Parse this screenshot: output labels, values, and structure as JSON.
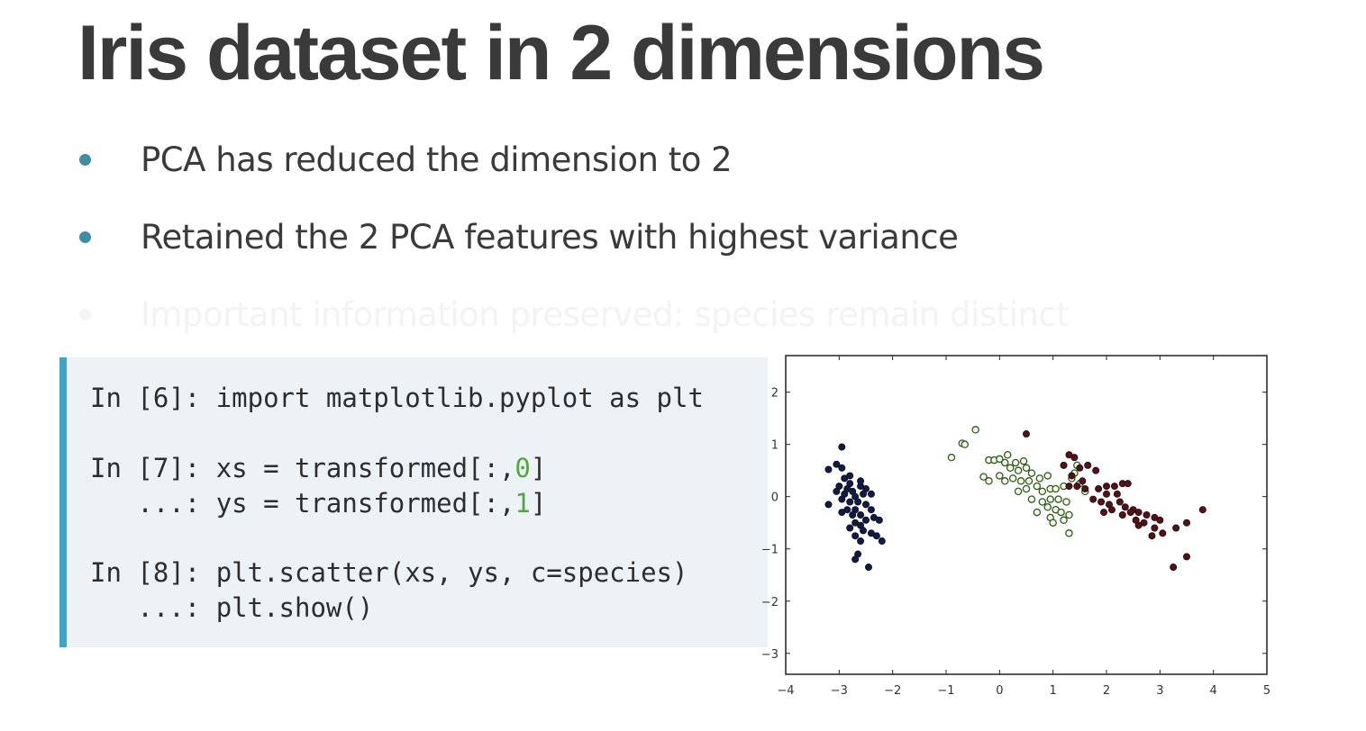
{
  "slide": {
    "title": "Iris dataset in 2 dimensions",
    "bullets": [
      {
        "text": "PCA has reduced the dimension to 2",
        "faded": false
      },
      {
        "text": "Retained the 2 PCA features with highest variance",
        "faded": false
      },
      {
        "text": "Important information preserved: species remain distinct",
        "faded": true
      }
    ]
  },
  "code": {
    "lines": [
      {
        "prompt": "In [6]: ",
        "code": "import matplotlib.pyplot as plt"
      },
      {
        "prompt": "In [7]: ",
        "pre": "xs = transformed[:,",
        "num": "0",
        "post": "]"
      },
      {
        "prompt": "   ...: ",
        "pre": "ys = transformed[:,",
        "num": "1",
        "post": "]"
      },
      {
        "prompt": "In [8]: ",
        "code": "plt.scatter(xs, ys, c=species)"
      },
      {
        "prompt": "   ...: ",
        "code": "plt.show()"
      }
    ]
  },
  "colors": {
    "title": "#3a3a3a",
    "bullet_dot": "#3b8ea5",
    "code_bg": "#edf2f7",
    "code_accent": "#3aa6c9",
    "code_number": "#4eaa3a",
    "setosa": "#0d1b4a",
    "versicolor": "#b5e08a",
    "virginica": "#5a0f14"
  },
  "chart_data": {
    "type": "scatter",
    "title": "",
    "xlabel": "",
    "ylabel": "",
    "xlim": [
      -4,
      5
    ],
    "ylim": [
      -3.4,
      2.7
    ],
    "xticks": [
      -4,
      -3,
      -2,
      -1,
      0,
      1,
      2,
      3,
      4,
      5
    ],
    "xtick_labels": [
      "−4",
      "−3",
      "−2",
      "−1",
      "0",
      "1",
      "2",
      "3",
      "4",
      "5"
    ],
    "yticks": [
      -3,
      -2,
      -1,
      0,
      1,
      2
    ],
    "ytick_labels": [
      "−3",
      "−2",
      "−1",
      "0",
      "1",
      "2"
    ],
    "grid": false,
    "series": [
      {
        "color": "#0d1b4a",
        "hollow": false,
        "points": [
          [
            -3.2,
            0.52
          ],
          [
            -3.05,
            0.62
          ],
          [
            -2.95,
            0.95
          ],
          [
            -2.95,
            0.55
          ],
          [
            -2.9,
            0.35
          ],
          [
            -2.8,
            0.25
          ],
          [
            -3.0,
            0.2
          ],
          [
            -2.85,
            0.15
          ],
          [
            -2.75,
            0.1
          ],
          [
            -2.6,
            0.2
          ],
          [
            -2.5,
            0.15
          ],
          [
            -2.9,
            0.05
          ],
          [
            -2.7,
            0.0
          ],
          [
            -2.55,
            0.05
          ],
          [
            -2.4,
            0.05
          ],
          [
            -2.95,
            -0.05
          ],
          [
            -2.8,
            -0.1
          ],
          [
            -2.65,
            -0.1
          ],
          [
            -2.5,
            -0.15
          ],
          [
            -3.2,
            -0.15
          ],
          [
            -2.85,
            -0.25
          ],
          [
            -2.7,
            -0.25
          ],
          [
            -2.4,
            -0.25
          ],
          [
            -2.95,
            -0.3
          ],
          [
            -2.75,
            -0.35
          ],
          [
            -2.6,
            -0.35
          ],
          [
            -2.35,
            -0.4
          ],
          [
            -2.5,
            -0.45
          ],
          [
            -2.25,
            -0.45
          ],
          [
            -2.7,
            -0.5
          ],
          [
            -2.6,
            -0.55
          ],
          [
            -2.8,
            -0.6
          ],
          [
            -2.55,
            -0.65
          ],
          [
            -2.4,
            -0.7
          ],
          [
            -2.7,
            -0.75
          ],
          [
            -2.3,
            -0.75
          ],
          [
            -2.2,
            -0.85
          ],
          [
            -2.6,
            -0.85
          ],
          [
            -2.65,
            -1.1
          ],
          [
            -2.7,
            -1.2
          ],
          [
            -2.45,
            -1.35
          ],
          [
            -3.05,
            0.1
          ],
          [
            -2.8,
            0.4
          ],
          [
            -2.6,
            0.3
          ]
        ]
      },
      {
        "color": "#b5e08a",
        "hollow": true,
        "points": [
          [
            -0.45,
            1.28
          ],
          [
            -0.7,
            1.02
          ],
          [
            -0.65,
            1.0
          ],
          [
            -0.9,
            0.75
          ],
          [
            -0.2,
            0.7
          ],
          [
            -0.1,
            0.7
          ],
          [
            0.0,
            0.72
          ],
          [
            0.15,
            0.8
          ],
          [
            0.1,
            0.65
          ],
          [
            0.3,
            0.65
          ],
          [
            0.45,
            0.68
          ],
          [
            0.2,
            0.55
          ],
          [
            0.35,
            0.5
          ],
          [
            0.5,
            0.55
          ],
          [
            0.6,
            0.45
          ],
          [
            -0.3,
            0.38
          ],
          [
            -0.2,
            0.3
          ],
          [
            0.0,
            0.4
          ],
          [
            0.1,
            0.3
          ],
          [
            0.25,
            0.35
          ],
          [
            0.4,
            0.3
          ],
          [
            0.55,
            0.3
          ],
          [
            0.75,
            0.35
          ],
          [
            0.9,
            0.4
          ],
          [
            0.7,
            0.2
          ],
          [
            0.5,
            0.15
          ],
          [
            0.35,
            0.1
          ],
          [
            0.8,
            0.1
          ],
          [
            0.95,
            0.15
          ],
          [
            1.05,
            0.15
          ],
          [
            1.2,
            0.2
          ],
          [
            1.35,
            0.35
          ],
          [
            1.4,
            0.45
          ],
          [
            1.45,
            0.6
          ],
          [
            0.6,
            -0.05
          ],
          [
            0.8,
            -0.1
          ],
          [
            0.95,
            -0.05
          ],
          [
            1.1,
            -0.05
          ],
          [
            1.25,
            -0.1
          ],
          [
            0.9,
            -0.2
          ],
          [
            1.05,
            -0.25
          ],
          [
            1.15,
            -0.3
          ],
          [
            0.7,
            -0.3
          ],
          [
            1.3,
            -0.35
          ],
          [
            0.95,
            -0.4
          ],
          [
            1.2,
            -0.45
          ],
          [
            1.0,
            -0.5
          ],
          [
            1.3,
            -0.7
          ],
          [
            1.5,
            0.25
          ],
          [
            1.6,
            0.1
          ]
        ]
      },
      {
        "color": "#5a0f14",
        "hollow": false,
        "points": [
          [
            0.5,
            1.2
          ],
          [
            1.3,
            0.8
          ],
          [
            1.4,
            0.75
          ],
          [
            1.2,
            0.6
          ],
          [
            1.5,
            0.55
          ],
          [
            1.65,
            0.6
          ],
          [
            1.8,
            0.5
          ],
          [
            1.35,
            0.4
          ],
          [
            1.55,
            0.3
          ],
          [
            1.3,
            0.2
          ],
          [
            1.45,
            0.2
          ],
          [
            1.6,
            0.15
          ],
          [
            2.0,
            0.2
          ],
          [
            2.15,
            0.2
          ],
          [
            2.3,
            0.25
          ],
          [
            2.4,
            0.25
          ],
          [
            1.85,
            0.15
          ],
          [
            2.0,
            0.05
          ],
          [
            2.2,
            0.05
          ],
          [
            1.75,
            -0.05
          ],
          [
            1.9,
            -0.1
          ],
          [
            2.05,
            -0.15
          ],
          [
            2.25,
            -0.1
          ],
          [
            2.35,
            -0.2
          ],
          [
            2.5,
            -0.25
          ],
          [
            2.1,
            -0.25
          ],
          [
            1.95,
            -0.3
          ],
          [
            2.3,
            -0.35
          ],
          [
            2.45,
            -0.3
          ],
          [
            2.6,
            -0.3
          ],
          [
            2.75,
            -0.35
          ],
          [
            2.9,
            -0.4
          ],
          [
            2.55,
            -0.45
          ],
          [
            2.7,
            -0.5
          ],
          [
            3.0,
            -0.45
          ],
          [
            3.3,
            -0.6
          ],
          [
            3.5,
            -0.5
          ],
          [
            3.8,
            -0.25
          ],
          [
            2.6,
            -0.55
          ],
          [
            2.9,
            -0.6
          ],
          [
            3.05,
            -0.7
          ],
          [
            2.85,
            -0.75
          ],
          [
            3.25,
            -1.35
          ],
          [
            3.5,
            -1.15
          ]
        ]
      }
    ]
  }
}
